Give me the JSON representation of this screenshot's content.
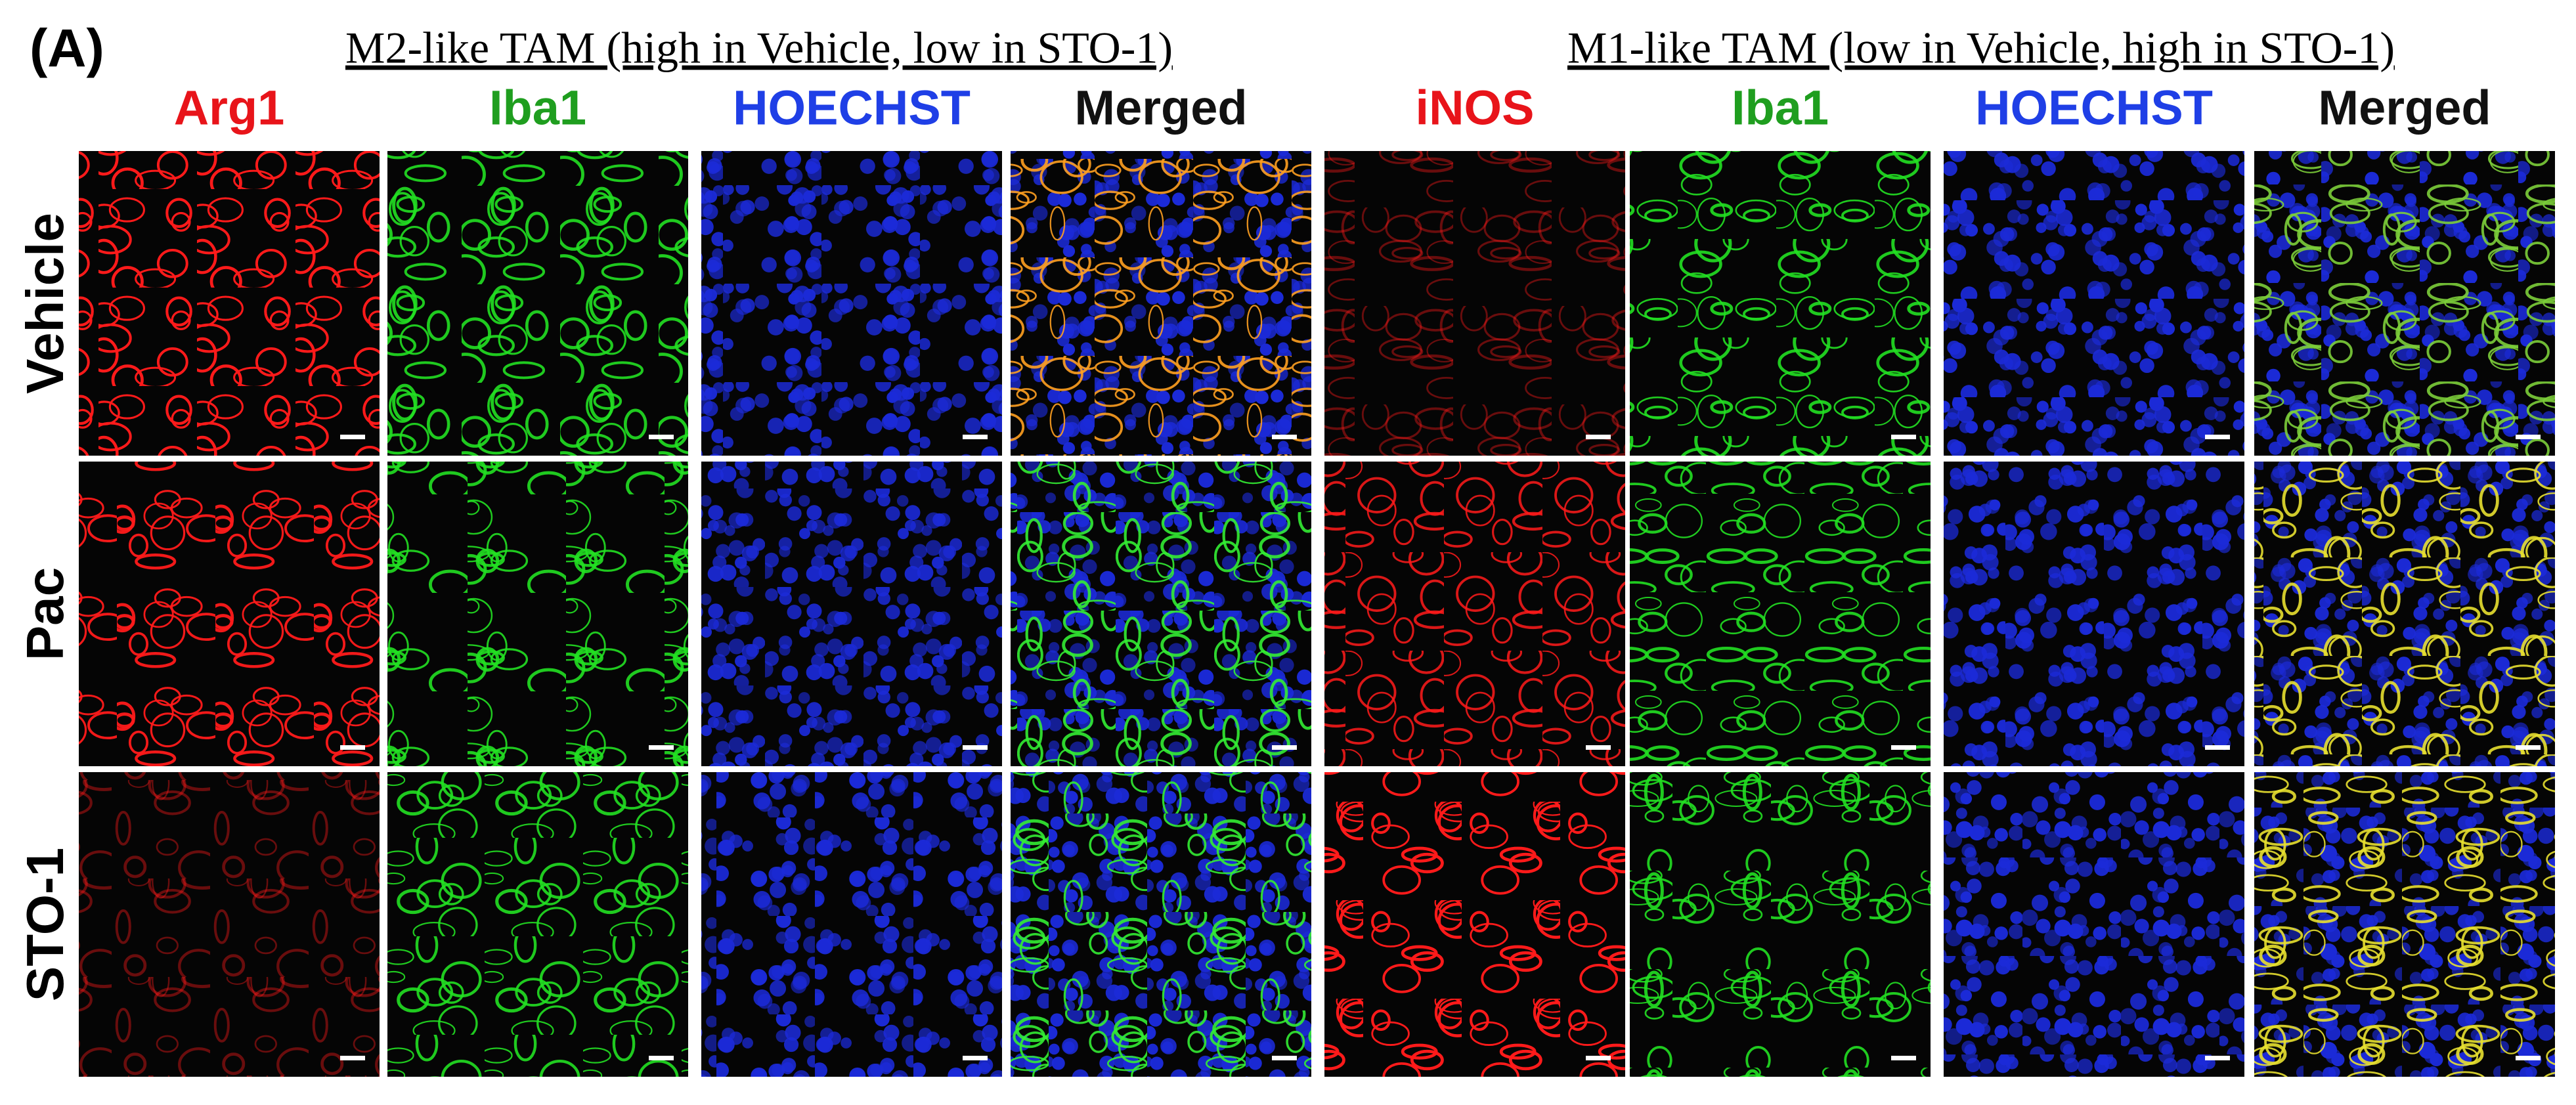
{
  "panel_label": "(A)",
  "groups": [
    {
      "title": "M2-like TAM (high in Vehicle, low in STO-1)",
      "columns": [
        "Arg1",
        "Iba1",
        "HOECHST",
        "Merged"
      ]
    },
    {
      "title": "M1-like TAM (low in Vehicle, high in STO-1)",
      "columns": [
        "iNOS",
        "Iba1",
        "HOECHST",
        "Merged"
      ]
    }
  ],
  "row_labels": [
    "Vehicle",
    "Pac",
    "STO-1"
  ]
}
